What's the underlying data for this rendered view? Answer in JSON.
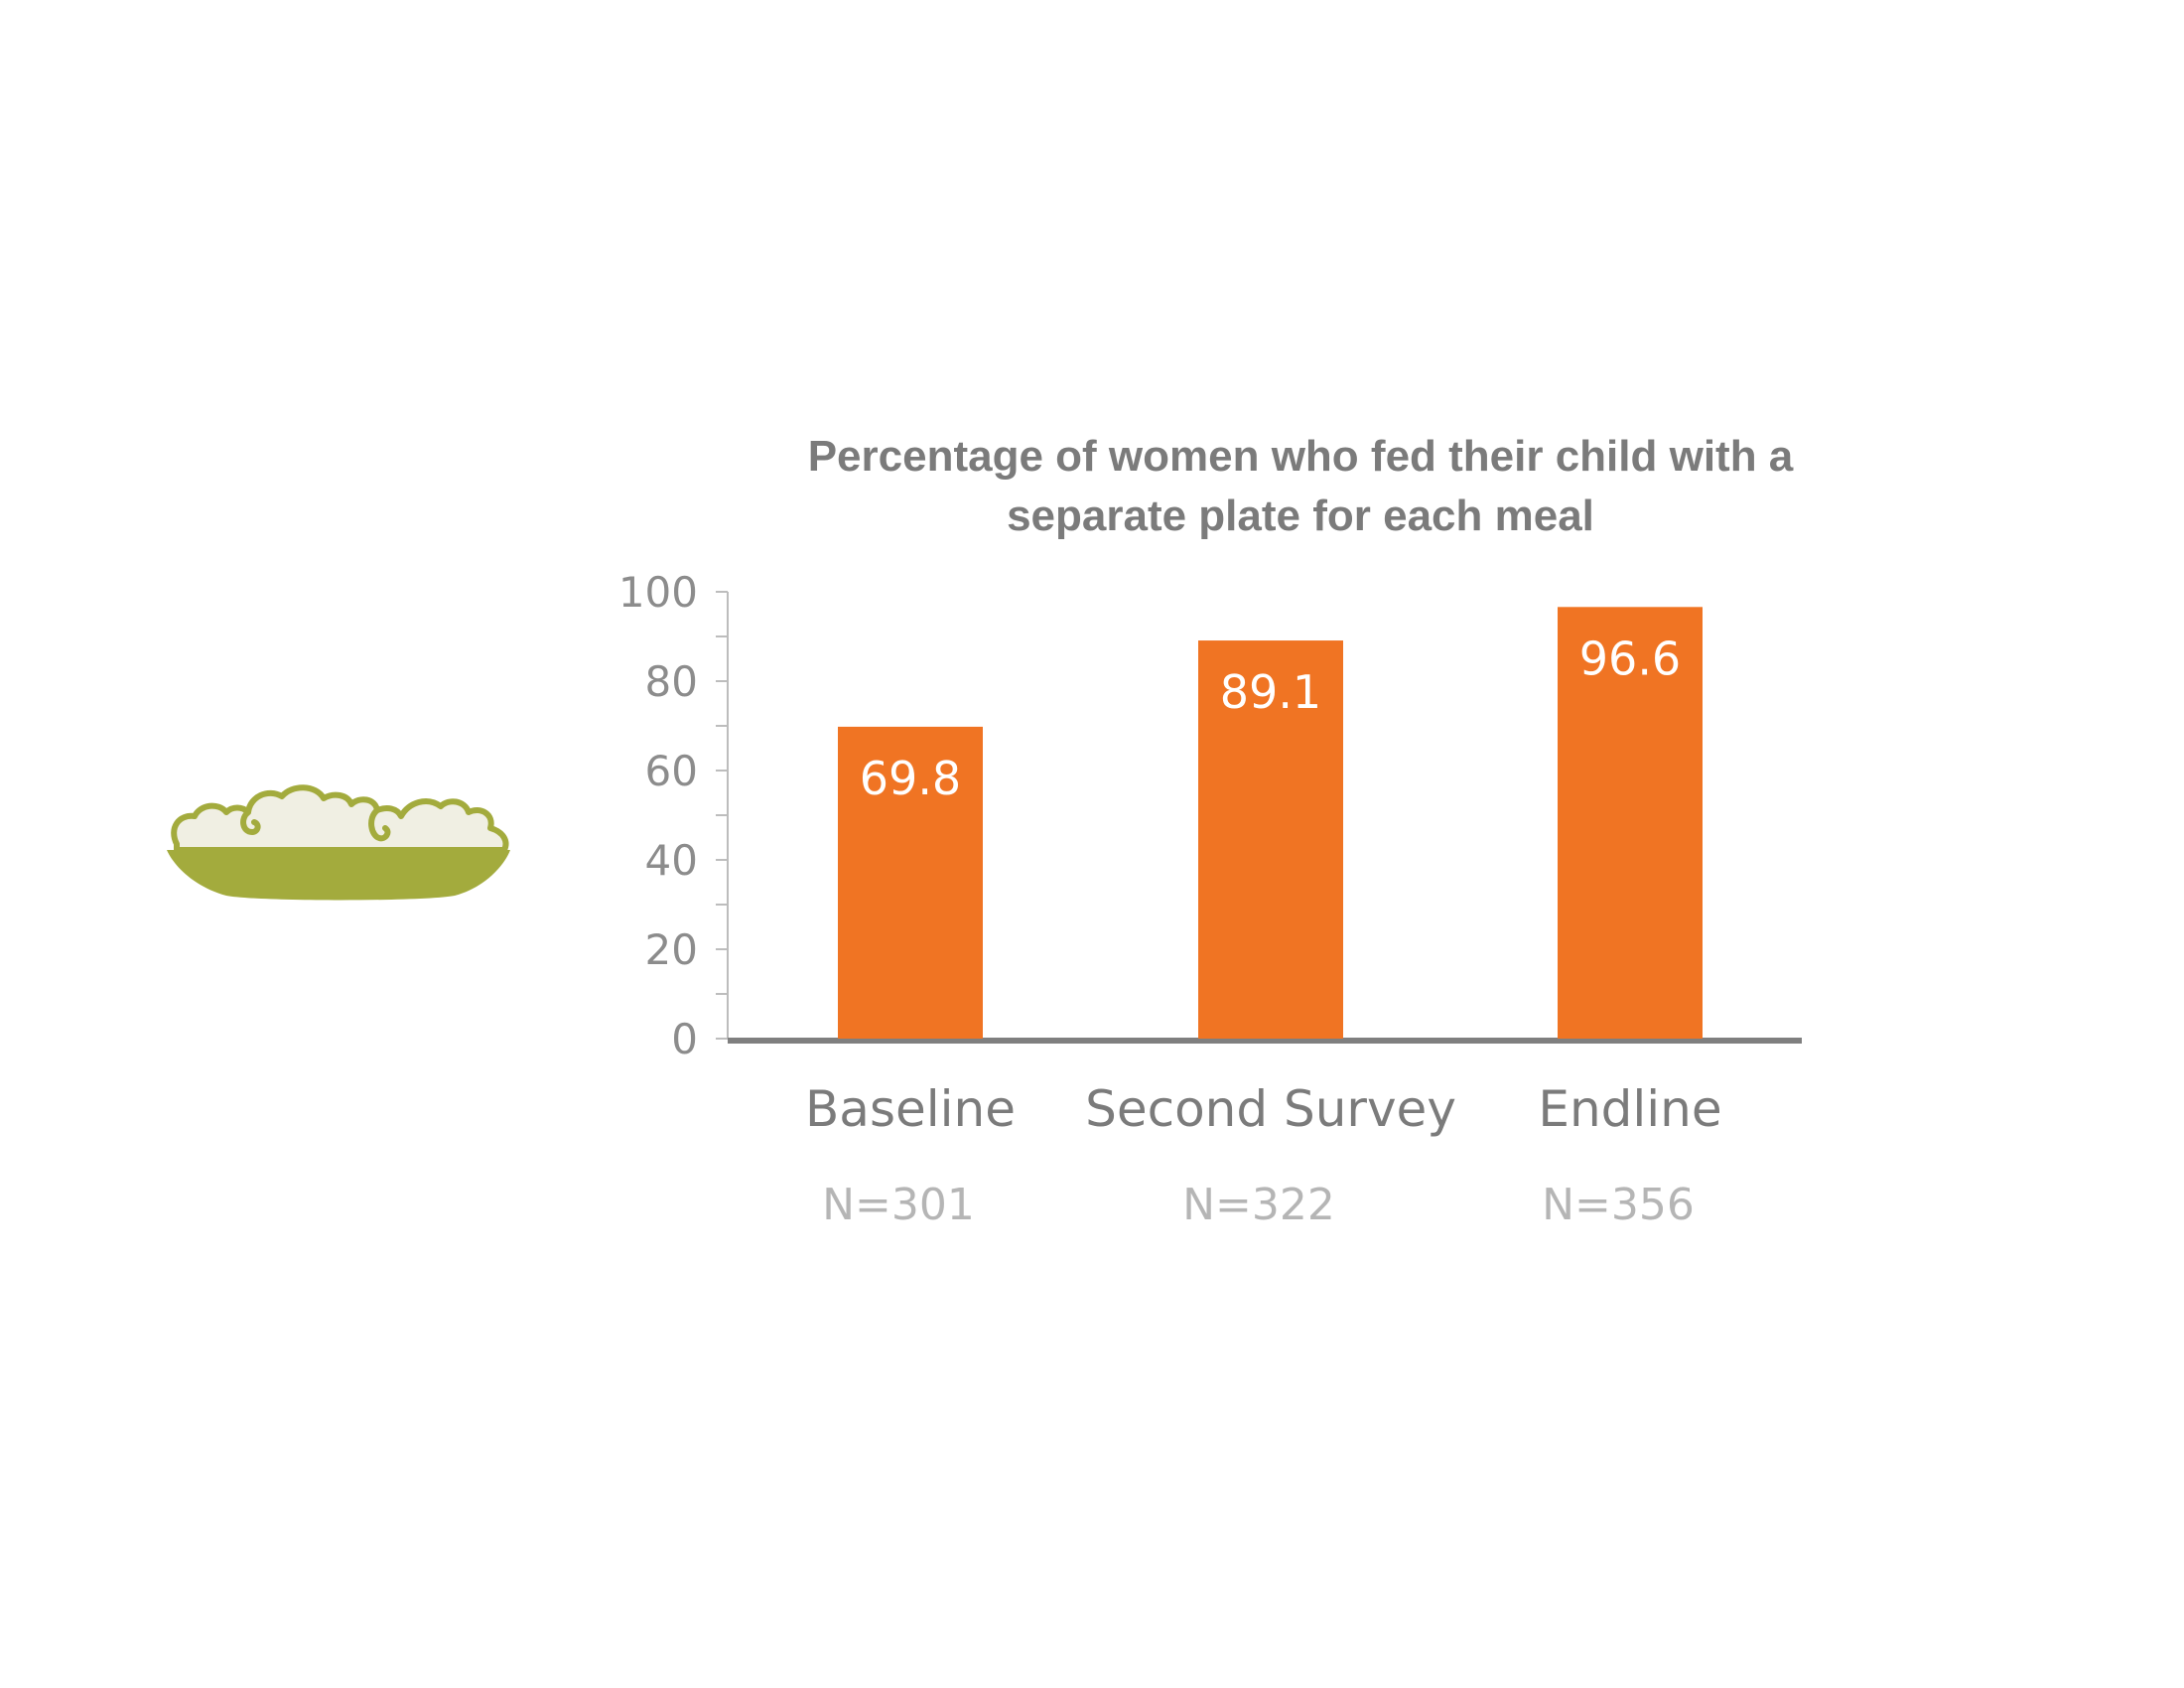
{
  "chart_data": {
    "type": "bar",
    "title_lines": [
      "Percentage of women who fed their child with a",
      "separate plate for each meal"
    ],
    "categories": [
      "Baseline",
      "Second Survey",
      "Endline"
    ],
    "sample_sizes": [
      "N=301",
      "N=322",
      "N=356"
    ],
    "values": [
      69.8,
      89.1,
      96.6
    ],
    "value_labels": [
      "69.8",
      "89.1",
      "96.6"
    ],
    "yticks": [
      "0",
      "20",
      "40",
      "60",
      "80",
      "100"
    ],
    "ylim": [
      0,
      100
    ],
    "ytick_step": 20,
    "grid": false,
    "legend": "none",
    "bar_color": "#f07423",
    "axis_color": "#7f7f7f"
  },
  "icon": {
    "name": "bowl-icon",
    "colors": {
      "bowl": "#a3ab3d",
      "food": "#f0efe3"
    }
  }
}
